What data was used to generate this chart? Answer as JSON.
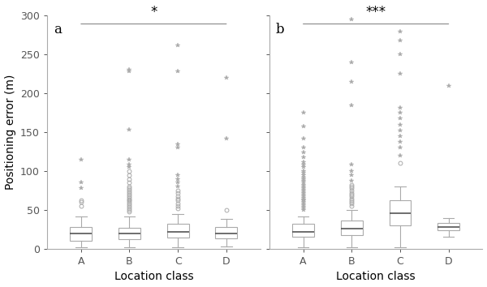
{
  "panel_a": {
    "label": "a",
    "significance": "*",
    "xlabel": "Location class",
    "ylabel": "Positioning error (m)",
    "ylim": [
      0,
      300
    ],
    "yticks": [
      0,
      50,
      100,
      150,
      200,
      250,
      300
    ],
    "categories": [
      "A",
      "B",
      "C",
      "D"
    ],
    "boxes": [
      {
        "whislo": 2,
        "q1": 10,
        "med": 20,
        "q3": 28,
        "whishi": 42,
        "fliers_circ": [
          55,
          60,
          63
        ],
        "fliers_star": [
          78,
          85,
          115
        ]
      },
      {
        "whislo": 2,
        "q1": 12,
        "med": 20,
        "q3": 27,
        "whishi": 42,
        "fliers_circ": [
          48,
          50,
          52,
          54,
          56,
          58,
          60,
          62,
          64,
          66,
          68,
          70,
          72,
          74,
          76,
          78,
          80,
          85,
          90,
          95,
          100
        ],
        "fliers_star": [
          105,
          108,
          115,
          153,
          228,
          231
        ]
      },
      {
        "whislo": 2,
        "q1": 14,
        "med": 22,
        "q3": 32,
        "whishi": 45,
        "fliers_circ": [
          52,
          55,
          58,
          62,
          65,
          68,
          72,
          75
        ],
        "fliers_star": [
          80,
          85,
          90,
          95,
          130,
          135,
          228,
          262
        ]
      },
      {
        "whislo": 3,
        "q1": 13,
        "med": 20,
        "q3": 28,
        "whishi": 38,
        "fliers_circ": [
          50
        ],
        "fliers_star": [
          142,
          220
        ]
      }
    ]
  },
  "panel_b": {
    "label": "b",
    "significance": "***",
    "xlabel": "Location class",
    "ylabel": "",
    "ylim": [
      0,
      300
    ],
    "yticks": [
      0,
      50,
      100,
      150,
      200,
      250,
      300
    ],
    "categories": [
      "A",
      "B",
      "C",
      "D"
    ],
    "boxes": [
      {
        "whislo": 2,
        "q1": 15,
        "med": 22,
        "q3": 32,
        "whishi": 42,
        "fliers_circ": [],
        "fliers_star": [
          50,
          52,
          54,
          56,
          58,
          60,
          62,
          64,
          66,
          68,
          70,
          72,
          74,
          76,
          78,
          80,
          82,
          85,
          88,
          90,
          92,
          95,
          98,
          100,
          105,
          108,
          112,
          118,
          124,
          130,
          142,
          158,
          175
        ]
      },
      {
        "whislo": 2,
        "q1": 18,
        "med": 26,
        "q3": 36,
        "whishi": 50,
        "fliers_circ": [
          55,
          58,
          60,
          62,
          65,
          68,
          70,
          72,
          75,
          78,
          80,
          82
        ],
        "fliers_star": [
          88,
          95,
          100,
          108,
          185,
          215,
          240,
          295
        ]
      },
      {
        "whislo": 2,
        "q1": 30,
        "med": 46,
        "q3": 62,
        "whishi": 80,
        "fliers_circ": [
          110
        ],
        "fliers_star": [
          120,
          130,
          138,
          145,
          152,
          160,
          168,
          175,
          182,
          225,
          250,
          268,
          280
        ]
      },
      {
        "whislo": 16,
        "q1": 24,
        "med": 28,
        "q3": 33,
        "whishi": 40,
        "fliers_circ": [],
        "fliers_star": [
          210
        ]
      }
    ]
  },
  "box_facecolor": "#ffffff",
  "box_edgecolor": "#aaaaaa",
  "median_color": "#555555",
  "median_linewidth": 1.2,
  "whisker_color": "#aaaaaa",
  "cap_color": "#aaaaaa",
  "flier_star_color": "#aaaaaa",
  "flier_circ_color": "#aaaaaa",
  "background_color": "#ffffff",
  "sig_line_color": "#888888",
  "fontsize_ylabel": 10,
  "fontsize_xlabel": 10,
  "fontsize_ticks": 9,
  "fontsize_panel_label": 12,
  "fontsize_sig": 12
}
